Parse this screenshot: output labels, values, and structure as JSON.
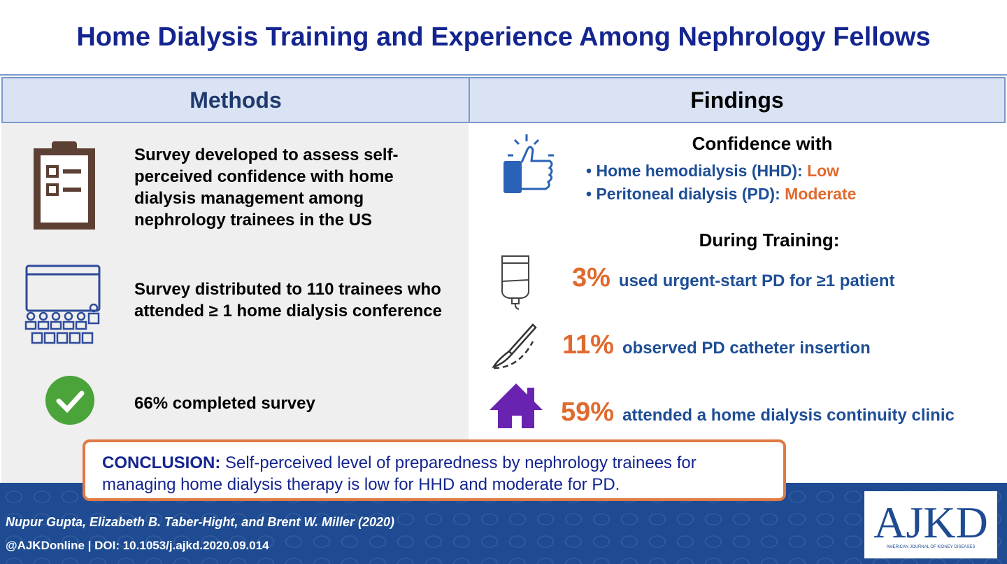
{
  "title": "Home Dialysis Training and Experience Among Nephrology Fellows",
  "methods": {
    "header": "Methods",
    "items": [
      "Survey developed to assess self-perceived confidence with home dialysis management among nephrology trainees in the US",
      "Survey distributed to 110 trainees who attended ≥ 1 home dialysis conference",
      "66% completed survey"
    ]
  },
  "findings": {
    "header": "Findings",
    "confidence_heading": "Confidence with",
    "confidence": [
      {
        "label": "Home hemodialysis (HHD): ",
        "level": "Low"
      },
      {
        "label": "Peritoneal dialysis (PD): ",
        "level": "Moderate"
      }
    ],
    "training_heading": "During Training:",
    "stats": [
      {
        "pct": "3%",
        "text": "used urgent-start PD for ≥1 patient"
      },
      {
        "pct": "11%",
        "text": "observed PD catheter insertion"
      },
      {
        "pct": "59%",
        "text": "attended a home dialysis continuity clinic"
      }
    ]
  },
  "conclusion": {
    "label": "CONCLUSION:",
    "text": " Self-perceived level of preparedness by nephrology trainees for managing home dialysis therapy is low for HHD and moderate for PD."
  },
  "footer": {
    "authors": "Nupur Gupta, Elizabeth B. Taber-Hight, and Brent W. Miller (2020)",
    "doi": "@AJKDonline | DOI: 10.1053/j.ajkd.2020.09.014",
    "logo": "AJKD",
    "logo_sub": "AMERICAN JOURNAL OF KIDNEY DISEASES"
  },
  "colors": {
    "navy": "#14258f",
    "blue": "#1e4e96",
    "orange": "#e06a2e",
    "purple": "#6a22b0",
    "green": "#4aa43a"
  }
}
